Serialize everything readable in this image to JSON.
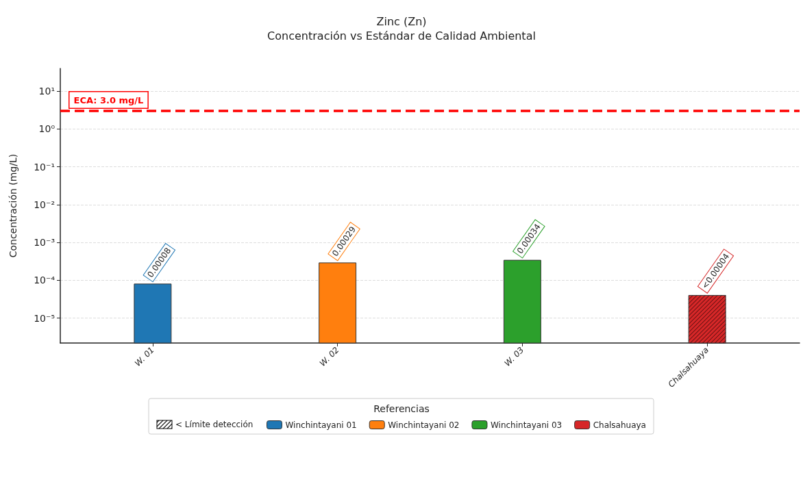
{
  "chart_data": {
    "type": "bar",
    "title": "Zinc (Zn)",
    "subtitle": "Concentración vs Estándar de Calidad Ambiental",
    "ylabel": "Concentración (mg/L)",
    "legend_title": "Referencias",
    "categories": [
      "W. 01",
      "W. 02",
      "W. 03",
      "Chalsahuaya"
    ],
    "series": [
      {
        "name": "Winchintayani 01",
        "color": "#1f77b4",
        "values": [
          8e-05,
          null,
          null,
          null
        ],
        "value_labels": [
          "0.00008",
          null,
          null,
          null
        ]
      },
      {
        "name": "Winchintayani 02",
        "color": "#ff7f0e",
        "values": [
          null,
          0.00029,
          null,
          null
        ],
        "value_labels": [
          null,
          "0.00029",
          null,
          null
        ]
      },
      {
        "name": "Winchintayani 03",
        "color": "#2ca02c",
        "values": [
          null,
          null,
          0.00034,
          null
        ],
        "value_labels": [
          null,
          null,
          "0.00034",
          null
        ]
      },
      {
        "name": "Chalsahuaya",
        "color": "#d62728",
        "values": [
          null,
          null,
          null,
          4e-05
        ],
        "value_labels": [
          null,
          null,
          null,
          "<0.00004"
        ]
      }
    ],
    "log": "y",
    "ylim": [
      2.2e-06,
      40
    ],
    "yticks": [
      {
        "value": 1e-05,
        "label": "10⁻⁵"
      },
      {
        "value": 0.0001,
        "label": "10⁻⁴"
      },
      {
        "value": 0.001,
        "label": "10⁻³"
      },
      {
        "value": 0.01,
        "label": "10⁻²"
      },
      {
        "value": 0.1,
        "label": "10⁻¹"
      },
      {
        "value": 1,
        "label": "10⁰"
      },
      {
        "value": 10,
        "label": "10¹"
      }
    ],
    "ref_lines": [
      {
        "axis": "y",
        "value": 3.0,
        "label": "ECA: 3.0 mg/L",
        "color": "#ff0000",
        "line_style": "dashed"
      }
    ],
    "annotations": [
      "< Límite detección"
    ],
    "grid": "y",
    "legend": "bottom"
  }
}
